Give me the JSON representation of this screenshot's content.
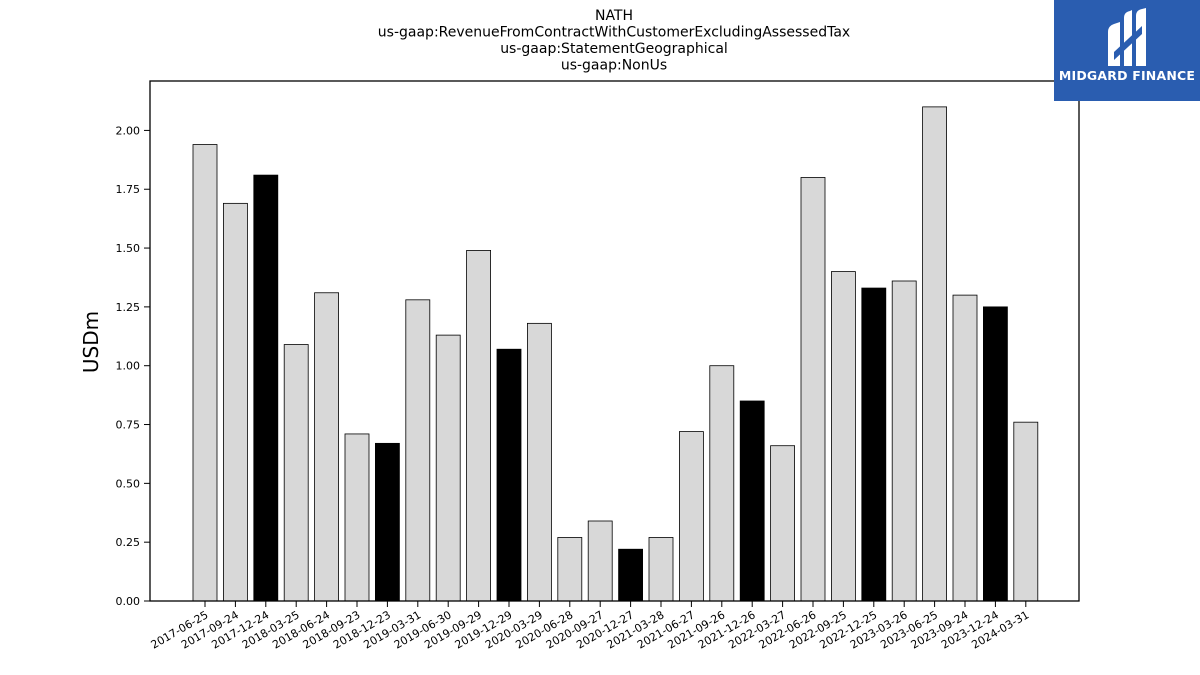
{
  "chart_data": {
    "type": "bar",
    "title_lines": [
      "NATH",
      "us-gaap:RevenueFromContractWithCustomerExcludingAssessedTax",
      "us-gaap:StatementGeographical",
      "us-gaap:NonUs"
    ],
    "ylabel": "USDm",
    "xlabel": "",
    "ylim": [
      0,
      2.21
    ],
    "yticks": [
      0.0,
      0.25,
      0.5,
      0.75,
      1.0,
      1.25,
      1.5,
      1.75,
      2.0
    ],
    "ytick_labels": [
      "0.00",
      "0.25",
      "0.50",
      "0.75",
      "1.00",
      "1.25",
      "1.50",
      "1.75",
      "2.00"
    ],
    "grid": false,
    "categories": [
      "2017-06-25",
      "2017-09-24",
      "2017-12-24",
      "2018-03-25",
      "2018-06-24",
      "2018-09-23",
      "2018-12-23",
      "2019-03-31",
      "2019-06-30",
      "2019-09-29",
      "2019-12-29",
      "2020-03-29",
      "2020-06-28",
      "2020-09-27",
      "2020-12-27",
      "2021-03-28",
      "2021-06-27",
      "2021-09-26",
      "2021-12-26",
      "2022-03-27",
      "2022-06-26",
      "2022-09-25",
      "2022-12-25",
      "2023-03-26",
      "2023-06-25",
      "2023-09-24",
      "2023-12-24",
      "2024-03-31"
    ],
    "values": [
      1.94,
      1.69,
      1.81,
      1.09,
      1.31,
      0.71,
      0.67,
      1.28,
      1.13,
      1.49,
      1.07,
      1.18,
      0.27,
      0.34,
      0.22,
      0.27,
      0.72,
      1.0,
      0.85,
      0.66,
      1.8,
      1.4,
      1.33,
      1.36,
      2.1,
      1.3,
      1.25,
      0.76
    ],
    "highlight_indices": [
      2,
      6,
      10,
      14,
      18,
      22,
      26
    ],
    "colors": {
      "default": "#d8d8d8",
      "highlight": "#000000",
      "edge": "#000000"
    }
  },
  "logo": {
    "text": "MIDGARD FINANCE",
    "background": "#2a5db0"
  }
}
